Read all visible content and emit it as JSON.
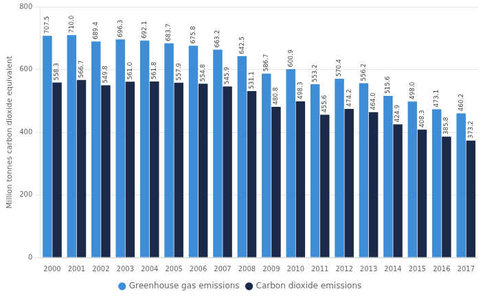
{
  "chart_data": {
    "type": "bar",
    "categories": [
      "2000",
      "2001",
      "2002",
      "2003",
      "2004",
      "2005",
      "2006",
      "2007",
      "2008",
      "2009",
      "2010",
      "2011",
      "2012",
      "2013",
      "2014",
      "2015",
      "2016",
      "2017"
    ],
    "series": [
      {
        "name": "Greenhouse gas emissions",
        "color": "#3d8ed6",
        "values": [
          707.5,
          710.0,
          689.4,
          696.3,
          692.1,
          683.7,
          675.8,
          663.2,
          642.5,
          586.7,
          600.9,
          553.2,
          570.4,
          556.2,
          515.6,
          498.0,
          473.1,
          460.2
        ],
        "value_labels": [
          "707.5",
          "710.0",
          "689.4",
          "696.3",
          "692.1",
          "683.7",
          "675.8",
          "663.2",
          "642.5",
          "586.7",
          "600.9",
          "553.2",
          "570.4",
          "556.2",
          "515.6",
          "498.0",
          "473.1",
          "460.2"
        ]
      },
      {
        "name": "Carbon dioxide emissions",
        "color": "#1b2a4a",
        "values": [
          558.3,
          566.7,
          549.8,
          561.0,
          561.8,
          557.9,
          554.8,
          545.9,
          531.1,
          480.8,
          498.3,
          455.6,
          474.2,
          464.0,
          424.9,
          408.3,
          385.8,
          373.2
        ],
        "value_labels": [
          "558.3",
          "566.7",
          "549.8",
          "561.0",
          "561.8",
          "557.9",
          "554.8",
          "545.9",
          "531.1",
          "480.8",
          "498.3",
          "455.6",
          "474.2",
          "464.0",
          "424.9",
          "408.3",
          "385.8",
          "373.2"
        ]
      }
    ],
    "ylabel": "Million tonnes carbon dioxide equivalent",
    "ylim": [
      0,
      800
    ],
    "yticks": [
      0,
      200,
      400,
      600,
      800
    ],
    "grid": true,
    "legend": "bottom",
    "data_labels": true
  }
}
